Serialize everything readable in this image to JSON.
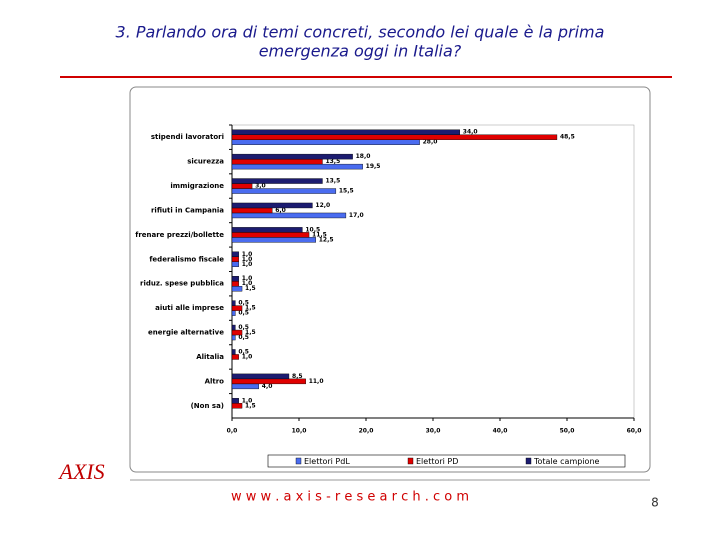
{
  "slide": {
    "title": [
      "3. Parlando ora di temi concreti, secondo lei quale è la prima",
      "emergenza oggi in Italia?"
    ],
    "logo": "AXIS",
    "footer": "w w w . a x i s - r e s e a r c h . c o m",
    "page_number": "8"
  },
  "chart_data": {
    "type": "hbar",
    "categories": [
      "stipendi lavoratori",
      "sicurezza",
      "immigrazione",
      "rifiuti in Campania",
      "frenare prezzi/bollette",
      "federalismo fiscale",
      "riduz. spese pubblica",
      "aiuti alle imprese",
      "energie alternative",
      "Alitalia",
      "Altro",
      "(Non sa)"
    ],
    "series": [
      {
        "name": "Elettori PdL",
        "color": "#4a6cf0",
        "values": [
          28,
          19.5,
          15.5,
          17,
          12.5,
          1,
          1.5,
          0.5,
          0.5,
          null,
          4,
          null
        ],
        "value_labels": [
          "28,0",
          "19,5",
          "15,5",
          "17,0",
          "12,5",
          "1,0",
          "1,5",
          "0,5",
          "0,5",
          null,
          "4,0",
          null
        ]
      },
      {
        "name": "Elettori PD",
        "color": "#e00000",
        "values": [
          48.5,
          13.5,
          3,
          6,
          11.5,
          1,
          1,
          1.5,
          1.5,
          1,
          11,
          1.5
        ],
        "value_labels": [
          "48,5",
          "13,5",
          "3,0",
          "6,0",
          "11,5",
          "1,0",
          "1,0",
          "1,5",
          "1,5",
          "1,0",
          "11,0",
          "1,5"
        ]
      },
      {
        "name": "Totale campione",
        "color": "#1c1c70",
        "values": [
          34,
          18,
          13.5,
          12,
          10.5,
          1,
          1,
          0.5,
          0.5,
          0.5,
          8.5,
          1
        ],
        "value_labels": [
          "34,0",
          "18,0",
          "13,5",
          "12,0",
          "10,5",
          "1,0",
          "1,0",
          "0,5",
          "0,5",
          "0,5",
          "8,5",
          "1,0"
        ]
      }
    ],
    "xlim": [
      0,
      60
    ],
    "xticks": [
      {
        "value": 0,
        "label": "0,0"
      },
      {
        "value": 10,
        "label": "10,0"
      },
      {
        "value": 20,
        "label": "20,0"
      },
      {
        "value": 30,
        "label": "30,0"
      },
      {
        "value": 40,
        "label": "40,0"
      },
      {
        "value": 50,
        "label": "50,0"
      },
      {
        "value": 60,
        "label": "60,0"
      }
    ],
    "legend": "bottom"
  }
}
